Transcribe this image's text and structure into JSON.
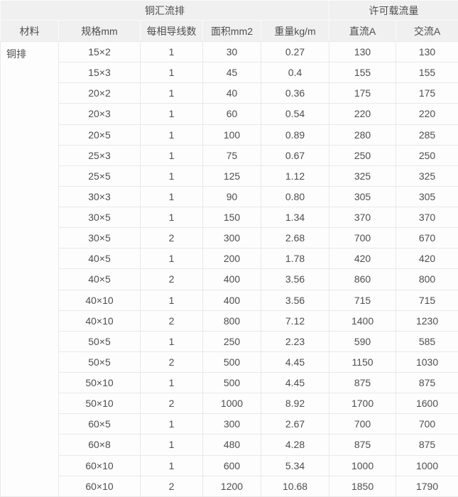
{
  "colors": {
    "header_bg": "#f0f0f0",
    "header_border": "#fafafa",
    "body_border": "#e9e9e9",
    "text_color": "#4e4e4e"
  },
  "table": {
    "header_groups": [
      {
        "label": "铜汇流排",
        "colspan": 5
      },
      {
        "label": "许可载流量",
        "colspan": 2
      }
    ],
    "columns": [
      "材料",
      "规格mm",
      "每相导线数",
      "面积mm2",
      "重量kg/m",
      "直流A",
      "交流A"
    ],
    "material": "铜排",
    "rows": [
      [
        "15×2",
        "1",
        "30",
        "0.27",
        "130",
        "130"
      ],
      [
        "15×3",
        "1",
        "45",
        "0.4",
        "155",
        "155"
      ],
      [
        "20×2",
        "1",
        "40",
        "0.36",
        "175",
        "175"
      ],
      [
        "20×3",
        "1",
        "60",
        "0.54",
        "220",
        "220"
      ],
      [
        "20×5",
        "1",
        "100",
        "0.89",
        "280",
        "285"
      ],
      [
        "25×3",
        "1",
        "75",
        "0.67",
        "250",
        "250"
      ],
      [
        "25×5",
        "1",
        "125",
        "1.12",
        "325",
        "325"
      ],
      [
        "30×3",
        "1",
        "90",
        "0.80",
        "305",
        "305"
      ],
      [
        "30×5",
        "1",
        "150",
        "1.34",
        "370",
        "370"
      ],
      [
        "30×5",
        "2",
        "300",
        "2.68",
        "700",
        "670"
      ],
      [
        "40×5",
        "1",
        "200",
        "1.78",
        "420",
        "420"
      ],
      [
        "40×5",
        "2",
        "400",
        "3.56",
        "860",
        "800"
      ],
      [
        "40×10",
        "1",
        "400",
        "3.56",
        "715",
        "715"
      ],
      [
        "40×10",
        "2",
        "800",
        "7.12",
        "1400",
        "1230"
      ],
      [
        "50×5",
        "1",
        "250",
        "2.23",
        "590",
        "585"
      ],
      [
        "50×5",
        "2",
        "500",
        "4.45",
        "1150",
        "1030"
      ],
      [
        "50×10",
        "1",
        "500",
        "4.45",
        "875",
        "875"
      ],
      [
        "50×10",
        "2",
        "1000",
        "8.92",
        "1700",
        "1600"
      ],
      [
        "60×5",
        "1",
        "300",
        "2.67",
        "700",
        "700"
      ],
      [
        "60×8",
        "1",
        "480",
        "4.28",
        "875",
        "875"
      ],
      [
        "60×10",
        "1",
        "600",
        "5.34",
        "1000",
        "1000"
      ],
      [
        "60×10",
        "2",
        "1200",
        "10.68",
        "1850",
        "1790"
      ]
    ]
  }
}
